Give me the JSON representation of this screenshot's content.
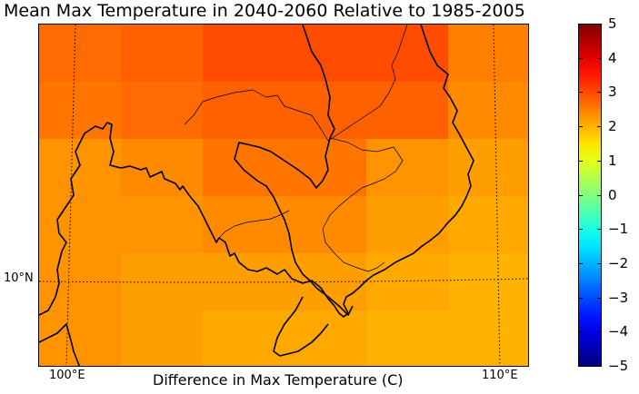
{
  "title": "Mean Max Temperature in 2040-2060 Relative to 1985-2005",
  "xlabel": "Difference in Max Temperature (C)",
  "lon_labels": [
    "100°E",
    "110°E"
  ],
  "lat_labels": [
    "10°N"
  ],
  "colorbar": {
    "min": -5,
    "max": 5,
    "ticks": [
      "5",
      "4",
      "3",
      "2",
      "1",
      "0",
      "−1",
      "−2",
      "−3",
      "−4",
      "−5"
    ],
    "colormap": "jet"
  },
  "map_data": {
    "region": "Southeast Asia mainland (Thailand, Cambodia, Laos, Vietnam)",
    "grid_rows": [
      [
        2.7,
        2.8,
        3.0,
        3.0,
        3.0,
        2.5
      ],
      [
        2.6,
        2.7,
        2.8,
        2.8,
        2.8,
        2.4
      ],
      [
        2.3,
        2.4,
        2.6,
        2.6,
        2.3,
        2.2
      ],
      [
        2.3,
        2.3,
        2.4,
        2.4,
        2.2,
        2.1
      ],
      [
        2.3,
        2.2,
        2.2,
        2.2,
        2.1,
        2.0
      ],
      [
        2.3,
        2.2,
        2.1,
        2.1,
        2.0,
        2.0
      ]
    ]
  }
}
